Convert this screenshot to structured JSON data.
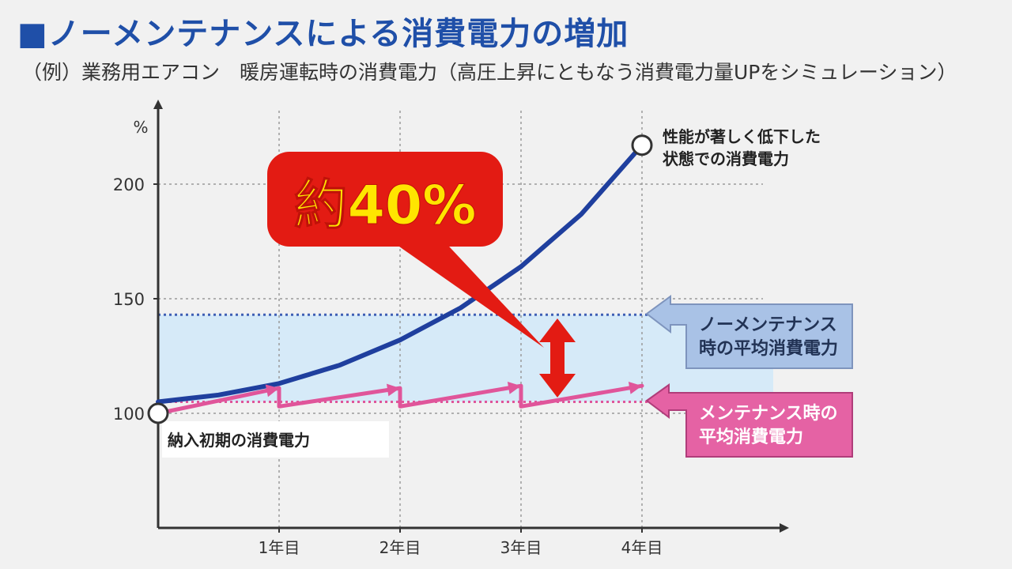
{
  "header": {
    "title": "■ノーメンテナンスによる消費電力の増加",
    "subtitle": "（例）業務用エアコン　暖房運転時の消費電力（高圧上昇にともなう消費電力量UPをシミュレーション）"
  },
  "chart_data": {
    "type": "line",
    "ylabel": "%",
    "ylim": [
      50,
      225
    ],
    "yticks": [
      "100",
      "150",
      "200"
    ],
    "ytick_values": [
      100,
      150,
      200
    ],
    "categories": [
      "1年目",
      "2年目",
      "3年目",
      "4年目"
    ],
    "xlim": [
      0,
      5
    ],
    "grid": true,
    "series": [
      {
        "color": "#1f3f9e",
        "x": [
          0,
          0.5,
          1,
          1.5,
          2,
          2.5,
          3,
          3.5,
          4
        ],
        "values": [
          105,
          108,
          113,
          121,
          132,
          146,
          164,
          187,
          217
        ]
      },
      {
        "color": "#e0559a",
        "x": [
          0,
          1,
          1,
          2,
          2,
          3,
          3,
          4
        ],
        "values": [
          100,
          111,
          103,
          111,
          103,
          112,
          103,
          112
        ]
      }
    ],
    "bands": [
      {
        "from": 105,
        "to": 143,
        "color": "#d6eaf8"
      }
    ],
    "reference_lines": [
      {
        "value": 143,
        "color": "#3f5fb5"
      },
      {
        "value": 105,
        "color": "#e0559a"
      }
    ],
    "annotations": {
      "callout": "約40%",
      "callout_color": "#e31b13",
      "callout_text_color": "#ffe500",
      "start_label": "納入初期の消費電力",
      "end_label_line1": "性能が著しく低下した",
      "end_label_line2": "状態での消費電力",
      "no_maint_label_line1": "ノーメンテナンス",
      "no_maint_label_line2": "時の平均消費電力",
      "no_maint_color": "#a9c2e6",
      "maint_label_line1": "メンテナンス時の",
      "maint_label_line2": "平均消費電力",
      "maint_color": "#e562a4"
    }
  }
}
